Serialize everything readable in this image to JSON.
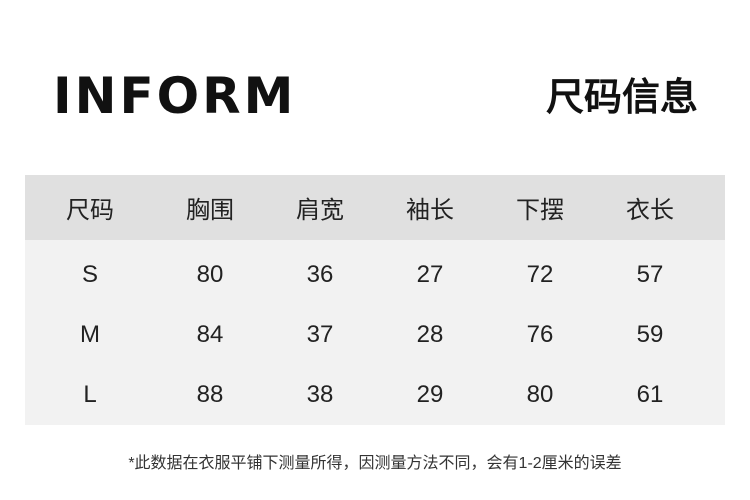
{
  "header": {
    "brand": "INFORM",
    "title": "尺码信息"
  },
  "table": {
    "columns": [
      "尺码",
      "胸围",
      "肩宽",
      "袖长",
      "下摆",
      "衣长"
    ],
    "rows": [
      [
        "S",
        "80",
        "36",
        "27",
        "72",
        "57"
      ],
      [
        "M",
        "84",
        "37",
        "28",
        "76",
        "59"
      ],
      [
        "L",
        "88",
        "38",
        "29",
        "80",
        "61"
      ]
    ]
  },
  "footnote": "*此数据在衣服平铺下测量所得，因测量方法不同，会有1-2厘米的误差",
  "colors": {
    "header_bg": "#e0e0e0",
    "body_bg": "#f2f2f2"
  }
}
